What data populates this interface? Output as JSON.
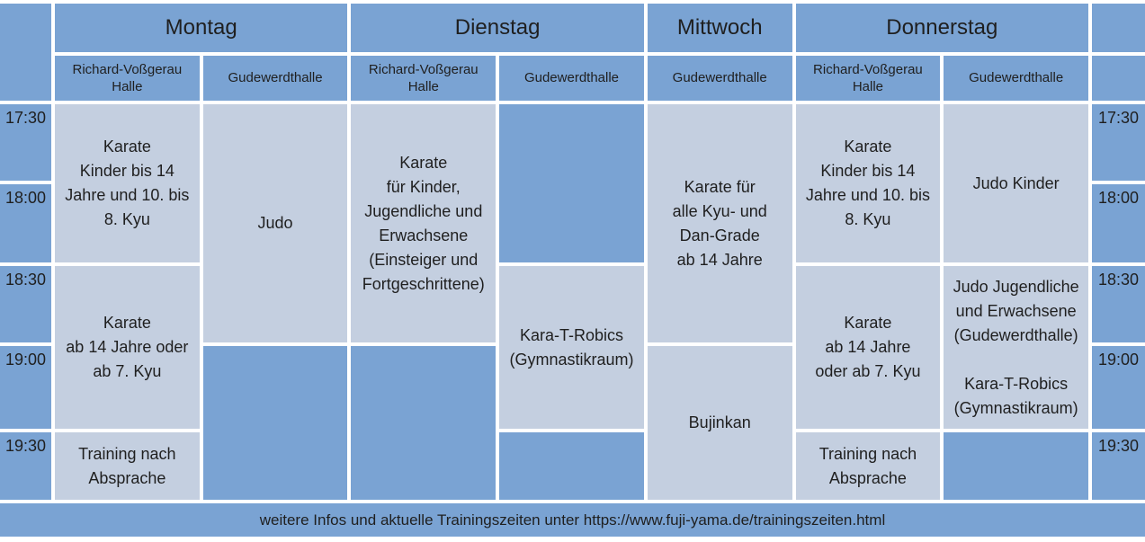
{
  "colors": {
    "header_blue": "#7aa3d3",
    "cell_light_blue": "#c4cfe0",
    "gap_white": "#ffffff",
    "text": "#1f1f1f"
  },
  "table": {
    "days": [
      {
        "label": "Montag",
        "halls": [
          "Richard-Voßgerau Halle",
          "Gudewerdthalle"
        ]
      },
      {
        "label": "Dienstag",
        "halls": [
          "Richard-Voßgerau Halle",
          "Gudewerdthalle"
        ]
      },
      {
        "label": "Mittwoch",
        "halls": [
          "Gudewerdthalle"
        ]
      },
      {
        "label": "Donnerstag",
        "halls": [
          "Richard-Voßgerau Halle",
          "Gudewerdthalle"
        ]
      }
    ],
    "times_left": [
      "17:30",
      "18:00",
      "18:30",
      "19:00",
      "19:30"
    ],
    "times_right": [
      "17:30",
      "18:00",
      "18:30",
      "19:00",
      "19:30"
    ],
    "events": {
      "monday_voss_early": "Karate\nKinder bis 14\nJahre und 10. bis\n8. Kyu",
      "monday_voss_late": "Karate\nab 14 Jahre oder\nab 7. Kyu",
      "monday_voss_night": "Training nach\nAbsprache",
      "monday_gude": "Judo",
      "tuesday_voss": "Karate\nfür Kinder,\nJugendliche und\nErwachsene\n(Einsteiger und\nFortgeschrittene)",
      "tuesday_gude": "Kara-T-Robics\n(Gymnastikraum)",
      "wednesday_early": "Karate für\nalle Kyu- und\nDan-Grade\nab 14 Jahre",
      "wednesday_late": "Bujinkan",
      "thursday_voss_early": "Karate\nKinder bis 14\nJahre und 10. bis\n8. Kyu",
      "thursday_voss_late": "Karate\nab 14 Jahre\noder ab 7. Kyu",
      "thursday_voss_night": "Training nach\nAbsprache",
      "thursday_gude_early": "Judo Kinder",
      "thursday_gude_late": "Judo Jugendliche\nund Erwachsene\n(Gudewerdthalle)\n\nKara-T-Robics\n(Gymnastikraum)"
    }
  },
  "footer": {
    "text": "weitere Infos und aktuelle Trainingszeiten unter https://www.fuji-yama.de/trainingszeiten.html"
  }
}
